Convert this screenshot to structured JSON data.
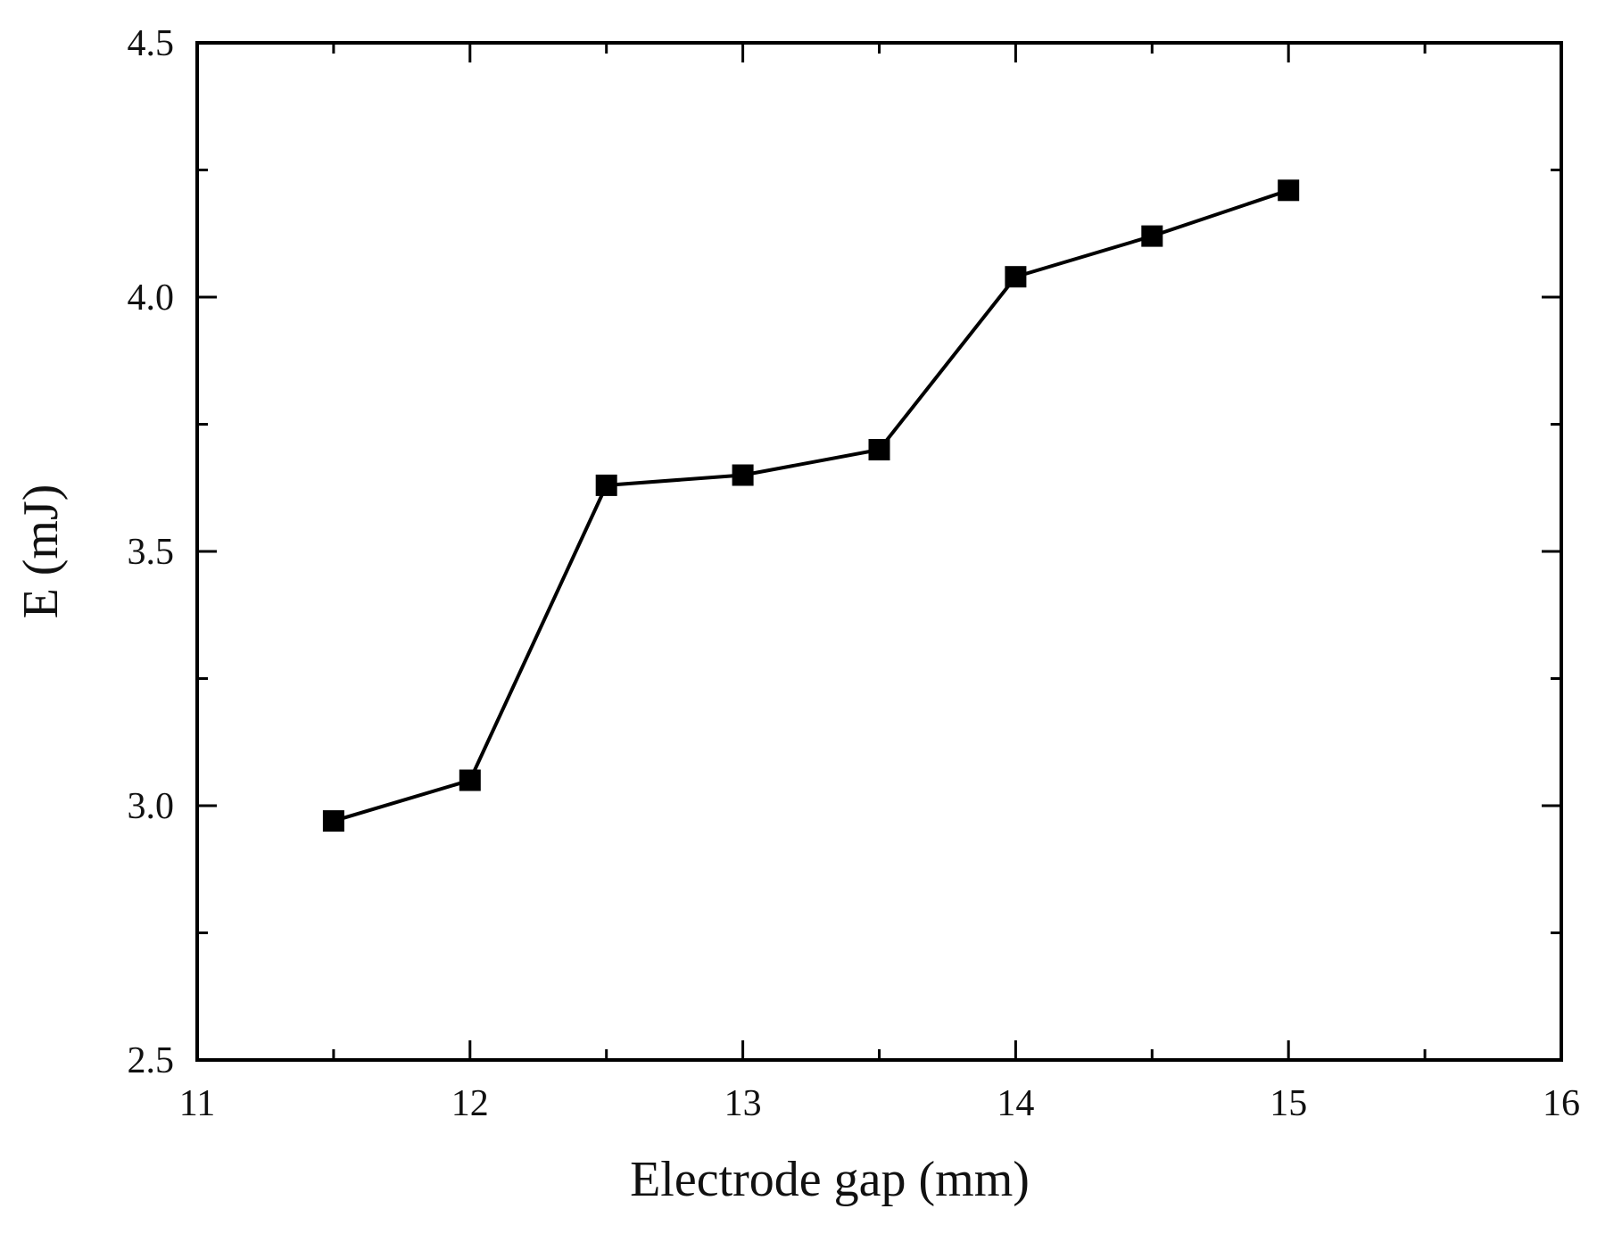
{
  "chart_data": {
    "type": "line",
    "title": "",
    "xlabel": "Electrode gap (mm)",
    "ylabel": "E (mJ)",
    "xlim": [
      11,
      16
    ],
    "ylim": [
      2.5,
      4.5
    ],
    "x_ticks": [
      11,
      12,
      13,
      14,
      15,
      16
    ],
    "x_tick_labels": [
      "11",
      "12",
      "13",
      "14",
      "15",
      "16"
    ],
    "y_major_ticks": [
      2.5,
      3.0,
      3.5,
      4.0,
      4.5
    ],
    "y_tick_labels": [
      "2.5",
      "3.0",
      "3.5",
      "4.0",
      "4.5"
    ],
    "y_minor_ticks": [
      2.75,
      3.25,
      3.75,
      4.25
    ],
    "x_minor_ticks": [
      11.5,
      12.5,
      13.5,
      14.5,
      15.5
    ],
    "grid": false,
    "marker": "square",
    "line_color": "#000000",
    "marker_color": "#000000",
    "series": [
      {
        "x": [
          11.5,
          12.0,
          12.5,
          13.0,
          13.5,
          14.0,
          14.5,
          15.0
        ],
        "y": [
          2.97,
          3.05,
          3.63,
          3.65,
          3.7,
          4.04,
          4.12,
          4.21
        ]
      }
    ]
  }
}
